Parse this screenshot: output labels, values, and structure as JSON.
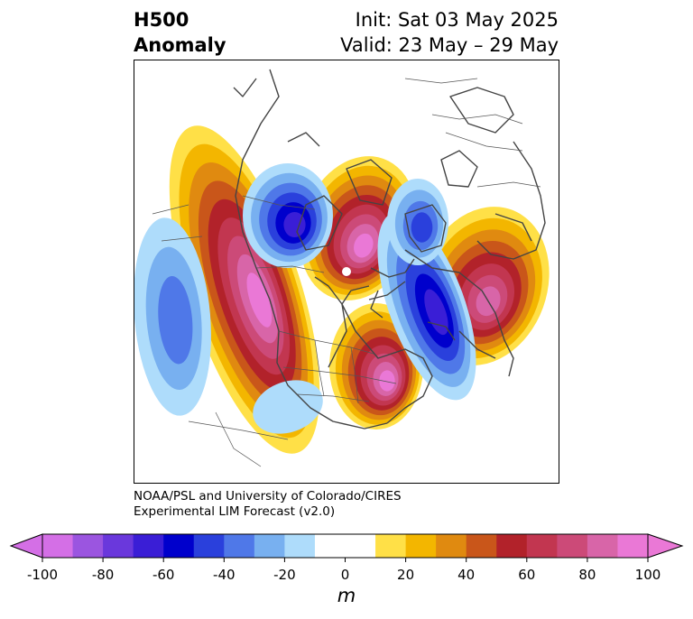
{
  "title": {
    "left_line1": "H500",
    "left_line2": "Anomaly",
    "init": "Init: Sat 03 May 2025",
    "valid": "Valid: 23 May – 29 May"
  },
  "credit": {
    "line1": "NOAA/PSL and University of Colorado/CIRES",
    "line2": "Experimental LIM Forecast (v2.0)"
  },
  "colorbar": {
    "unit": "m",
    "ticks": [
      "-100",
      "-80",
      "-60",
      "-40",
      "-20",
      "0",
      "20",
      "40",
      "60",
      "80",
      "100"
    ],
    "colors": [
      "#d46fe6",
      "#9b55e0",
      "#6a38dc",
      "#3a1ed6",
      "#0000cc",
      "#2a40dc",
      "#4f78e8",
      "#78b0f0",
      "#aedcfb",
      "#ffffff",
      "#ffffff",
      "#ffe047",
      "#f3b600",
      "#e08a10",
      "#c9561a",
      "#b2222a",
      "#c23650",
      "#cc4a78",
      "#d865a8",
      "#ea78d6"
    ]
  },
  "map": {
    "anomalies": [
      {
        "name": "anomaly-positive-western-north-america",
        "sign": "positive",
        "peak": 100
      },
      {
        "name": "anomaly-positive-eastern-north-america",
        "sign": "positive",
        "peak": 100
      },
      {
        "name": "anomaly-positive-greenland-sea",
        "sign": "positive",
        "peak": 100
      },
      {
        "name": "anomaly-positive-scandinavia",
        "sign": "positive",
        "peak": 80
      },
      {
        "name": "anomaly-negative-north-pacific",
        "sign": "negative",
        "peak": -40
      },
      {
        "name": "anomaly-negative-east-siberia",
        "sign": "negative",
        "peak": -60
      },
      {
        "name": "anomaly-negative-north-atlantic",
        "sign": "negative",
        "peak": -60
      },
      {
        "name": "anomaly-negative-barents-sea",
        "sign": "negative",
        "peak": -40
      },
      {
        "name": "anomaly-negative-southwest-us",
        "sign": "negative",
        "peak": -20
      }
    ]
  }
}
